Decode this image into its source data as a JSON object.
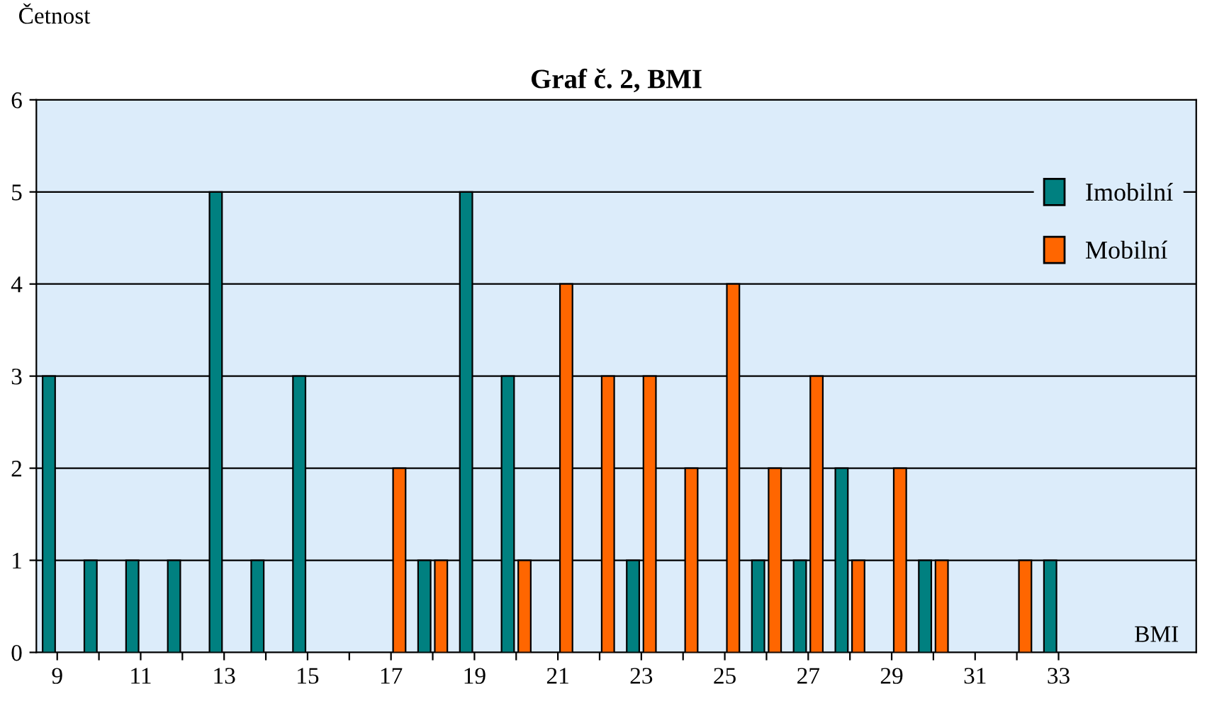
{
  "chart_data": {
    "type": "bar",
    "title": "Graf č. 2, BMI",
    "xlabel": "BMI",
    "ylabel": "Četnost",
    "categories": [
      "9",
      null,
      "11",
      null,
      "13",
      null,
      "15",
      null,
      "17",
      null,
      "19",
      null,
      "21",
      null,
      "23",
      null,
      "25",
      null,
      "27",
      null,
      "29",
      null,
      "31",
      null,
      "33"
    ],
    "series": [
      {
        "name": "Imobilní",
        "color": "#008080",
        "values": [
          3,
          1,
          1,
          1,
          5,
          1,
          3,
          null,
          null,
          1,
          5,
          3,
          null,
          null,
          1,
          null,
          null,
          1,
          1,
          2,
          null,
          1,
          null,
          null,
          1
        ]
      },
      {
        "name": "Mobilní",
        "color": "#ff6600",
        "values": [
          null,
          null,
          null,
          null,
          null,
          null,
          null,
          null,
          2,
          1,
          null,
          1,
          4,
          3,
          3,
          2,
          4,
          2,
          3,
          1,
          2,
          1,
          null,
          1,
          null
        ]
      }
    ],
    "ylim": [
      0,
      6
    ],
    "yticks": [
      0,
      1,
      2,
      3,
      4,
      5,
      6
    ],
    "grid": "y",
    "legend": "right"
  }
}
